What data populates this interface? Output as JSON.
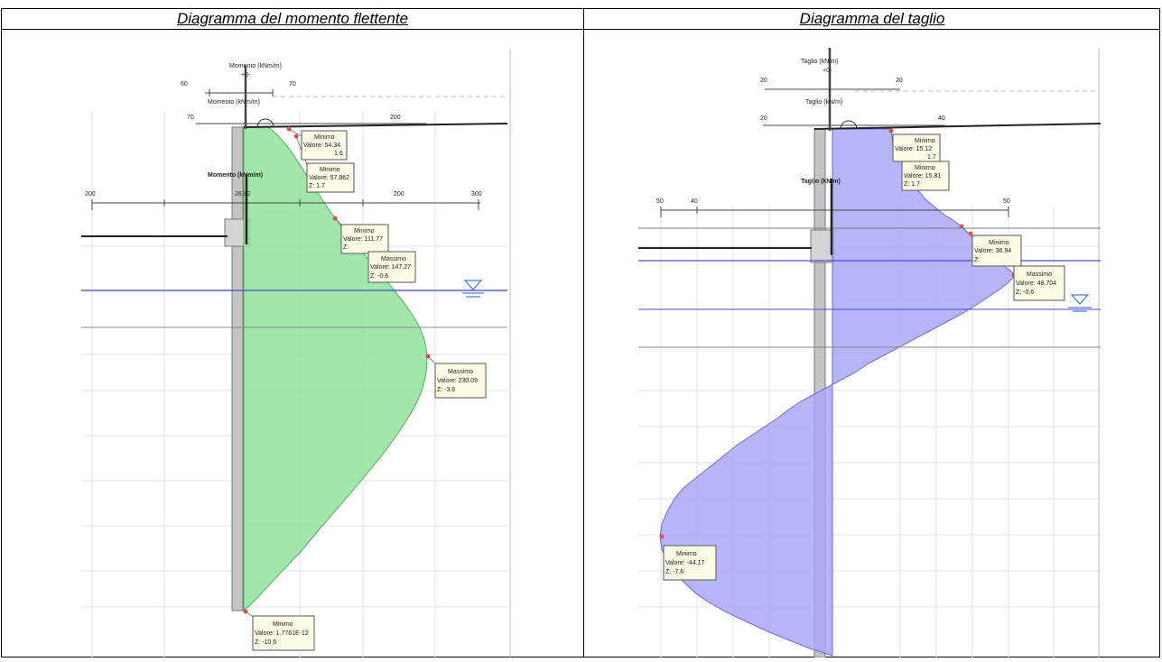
{
  "titles": {
    "left": "Diagramma del momento flettente",
    "right": "Diagramma del taglio"
  },
  "moment": {
    "fill_color": "#90e39a",
    "axis": {
      "label_top": "Momento (kNm/m)",
      "label_mid": "Momento (kNm/m)",
      "label_main": "Momento (kNm/m)",
      "arrow": "+0-",
      "ticks_top": [
        "60",
        "70"
      ],
      "ticks_mid": [
        "70",
        "200"
      ],
      "ticks_main": [
        "200",
        "26.92",
        "200",
        "300"
      ]
    },
    "tags": [
      {
        "title": "Minimo",
        "valore": "Valore: 54.34",
        "z": "1.6"
      },
      {
        "title": "Minimo",
        "valore": "Valore: 57.862",
        "z": "Z: 1.7"
      },
      {
        "title": "Minimo",
        "valore": "Valore: 111.77",
        "z": "Z:"
      },
      {
        "title": "Massimo",
        "valore": "Valore: 147.27",
        "z": "Z: -0.6"
      },
      {
        "title": "Massimo",
        "valore": "Valore: 230.09",
        "z": "Z: -3.6"
      },
      {
        "title": "Minimo",
        "valore": "Valore: 1.7761E-12",
        "z": "Z: -10.6"
      }
    ]
  },
  "shear": {
    "fill_color": "#a9a9f5",
    "axis": {
      "label_top": "Taglio (kN/m)",
      "label_mid": "Taglio (kN/m)",
      "label_main": "Taglio (kN/m)",
      "arrow": "+0-",
      "ticks_top": [
        "20",
        "20"
      ],
      "ticks_mid": [
        "20",
        "40"
      ],
      "ticks_main": [
        "50",
        "40",
        "50"
      ]
    },
    "tags": [
      {
        "title": "Minimo",
        "valore": "Valore: 15.12",
        "z": "1.7"
      },
      {
        "title": "Minimo",
        "valore": "Valore: 15.81",
        "z": "Z: 1.7"
      },
      {
        "title": "Minimo",
        "valore": "Valore: 36.94",
        "z": "Z:"
      },
      {
        "title": "Massimo",
        "valore": "Valore: 48.704",
        "z": "Z: -0.6"
      },
      {
        "title": "Minimo",
        "valore": "Valore: -44.17",
        "z": "Z: -7.6"
      }
    ]
  }
}
